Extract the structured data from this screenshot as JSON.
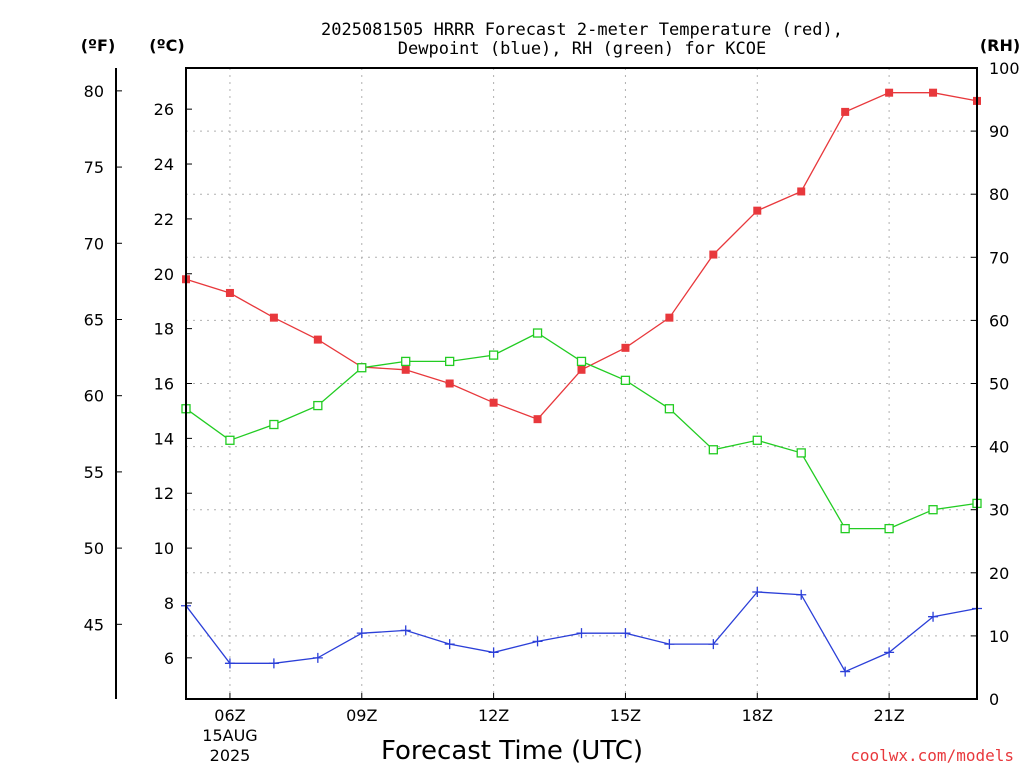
{
  "chart_data": {
    "type": "line",
    "title_line1": "2025081505 HRRR Forecast 2-meter Temperature (red),",
    "title_line2": "Dewpoint (blue), RH (green) for KCOE",
    "xlabel": "Forecast Time (UTC)",
    "left_outer_unit": "(ºF)",
    "left_inner_unit": "(ºC)",
    "right_unit": "(RH)",
    "date_label_day": "15AUG",
    "date_label_year": "2025",
    "credit": "coolwx.com/models",
    "x_hours": [
      5,
      6,
      7,
      8,
      9,
      10,
      11,
      12,
      13,
      14,
      15,
      16,
      17,
      18,
      19,
      20,
      21,
      22,
      23
    ],
    "x_ticks": [
      {
        "hour": 6,
        "label": "06Z"
      },
      {
        "hour": 9,
        "label": "09Z"
      },
      {
        "hour": 12,
        "label": "12Z"
      },
      {
        "hour": 15,
        "label": "15Z"
      },
      {
        "hour": 18,
        "label": "18Z"
      },
      {
        "hour": 21,
        "label": "21Z"
      }
    ],
    "xlim": [
      5,
      23
    ],
    "celsius_ylim": [
      4.5,
      27.5
    ],
    "celsius_ticks": [
      6,
      8,
      10,
      12,
      14,
      16,
      18,
      20,
      22,
      24,
      26
    ],
    "fahrenheit_ticks": [
      45,
      50,
      55,
      60,
      65,
      70,
      75,
      80
    ],
    "rh_ylim": [
      0,
      100
    ],
    "rh_ticks": [
      0,
      10,
      20,
      30,
      40,
      50,
      60,
      70,
      80,
      90,
      100
    ],
    "series": [
      {
        "key": "temperature",
        "color": "#e8383c",
        "marker": "filled-square",
        "axis": "celsius",
        "values": [
          19.8,
          19.3,
          18.4,
          17.6,
          16.6,
          16.5,
          16.0,
          15.3,
          14.7,
          16.5,
          17.3,
          18.4,
          20.7,
          22.3,
          23.0,
          25.9,
          26.6,
          26.6,
          26.3
        ]
      },
      {
        "key": "dewpoint",
        "color": "#2b3fd8",
        "marker": "plus",
        "axis": "celsius",
        "values": [
          7.9,
          5.8,
          5.8,
          6.0,
          6.9,
          7.0,
          6.5,
          6.2,
          6.6,
          6.9,
          6.9,
          6.5,
          6.5,
          8.4,
          8.3,
          5.5,
          6.2,
          7.5,
          7.8
        ]
      },
      {
        "key": "relative_humidity",
        "color": "#22cc22",
        "marker": "open-square",
        "axis": "rh",
        "values": [
          46,
          41,
          43.5,
          46.5,
          52.5,
          53.5,
          53.5,
          54.5,
          58,
          53.5,
          50.5,
          46,
          39.5,
          41,
          39,
          27,
          27,
          30,
          31
        ]
      }
    ]
  }
}
